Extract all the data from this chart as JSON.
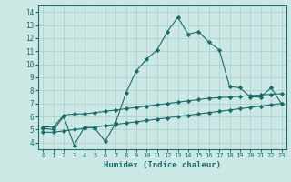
{
  "title": "",
  "xlabel": "Humidex (Indice chaleur)",
  "ylabel": "",
  "bg_color": "#cce8e4",
  "line_color": "#1a6b6b",
  "grid_color": "#aacfcc",
  "xlim": [
    -0.5,
    23.5
  ],
  "ylim": [
    3.5,
    14.5
  ],
  "xticks": [
    0,
    1,
    2,
    3,
    4,
    5,
    6,
    7,
    8,
    9,
    10,
    11,
    12,
    13,
    14,
    15,
    16,
    17,
    18,
    19,
    20,
    21,
    22,
    23
  ],
  "yticks": [
    4,
    5,
    6,
    7,
    8,
    9,
    10,
    11,
    12,
    13,
    14
  ],
  "line1_x": [
    0,
    1,
    2,
    3,
    4,
    5,
    6,
    7,
    8,
    9,
    10,
    11,
    12,
    13,
    14,
    15,
    16,
    17,
    18,
    19,
    20,
    21,
    22,
    23
  ],
  "line1_y": [
    5.1,
    5.0,
    6.0,
    3.8,
    5.2,
    5.1,
    4.1,
    5.5,
    7.8,
    9.5,
    10.4,
    11.1,
    12.5,
    13.6,
    12.3,
    12.5,
    11.7,
    11.1,
    8.3,
    8.2,
    7.5,
    7.5,
    8.2,
    7.0
  ],
  "line2_x": [
    0,
    1,
    2,
    3,
    4,
    5,
    6,
    7,
    8,
    9,
    10,
    11,
    12,
    13,
    14,
    15,
    16,
    17,
    18,
    19,
    20,
    21,
    22,
    23
  ],
  "line2_y": [
    5.2,
    5.2,
    6.1,
    6.2,
    6.2,
    6.3,
    6.4,
    6.5,
    6.6,
    6.7,
    6.8,
    6.9,
    7.0,
    7.1,
    7.2,
    7.3,
    7.4,
    7.45,
    7.5,
    7.55,
    7.6,
    7.65,
    7.7,
    7.75
  ],
  "line3_x": [
    0,
    1,
    2,
    3,
    4,
    5,
    6,
    7,
    8,
    9,
    10,
    11,
    12,
    13,
    14,
    15,
    16,
    17,
    18,
    19,
    20,
    21,
    22,
    23
  ],
  "line3_y": [
    4.8,
    4.8,
    4.9,
    5.0,
    5.1,
    5.2,
    5.3,
    5.4,
    5.5,
    5.6,
    5.7,
    5.8,
    5.9,
    6.0,
    6.1,
    6.2,
    6.3,
    6.4,
    6.5,
    6.6,
    6.7,
    6.8,
    6.9,
    7.0
  ]
}
